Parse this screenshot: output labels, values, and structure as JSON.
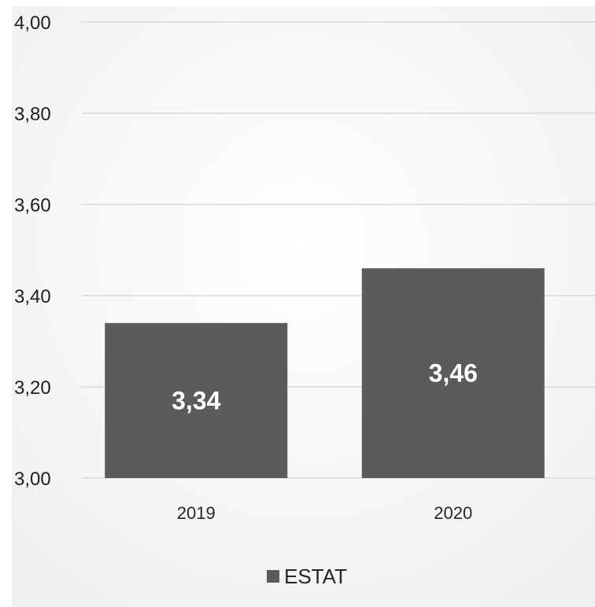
{
  "colors": {
    "bar": "#5b5b5d",
    "gridline": "#d9d9d9",
    "plot_bg_center": "#ffffff",
    "plot_bg_edge": "#efefef"
  },
  "chart_data": {
    "type": "bar",
    "title": "",
    "xlabel": "",
    "ylabel": "",
    "categories": [
      "2019",
      "2020"
    ],
    "series": [
      {
        "name": "ESTAT",
        "values": [
          3.34,
          3.46
        ],
        "data_labels": [
          "3,34",
          "3,46"
        ]
      }
    ],
    "ylim": [
      3.0,
      4.0
    ],
    "yticks": [
      3.0,
      3.2,
      3.4,
      3.6,
      3.8,
      4.0
    ],
    "ytick_labels": [
      "3,00",
      "3,20",
      "3,40",
      "3,60",
      "3,80",
      "4,00"
    ],
    "grid": true,
    "legend_position": "bottom"
  }
}
